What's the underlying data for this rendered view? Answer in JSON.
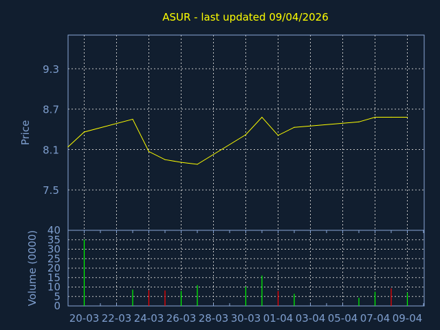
{
  "chart_data": [
    {
      "type": "line",
      "title": "ASUR - last updated 09/04/2026",
      "ylabel": "Price",
      "xlabel": "",
      "ylim": [
        6.9,
        9.8
      ],
      "yticks": [
        "9.3",
        "8.7",
        "8.1",
        "7.5"
      ],
      "ytick_values": [
        9.3,
        8.7,
        8.1,
        7.5
      ],
      "grid": true,
      "line_color": "#ffff00",
      "x": [
        "19-03",
        "20-03",
        "23-03",
        "24-03",
        "25-03",
        "26-03",
        "27-03",
        "30-03",
        "31-03",
        "01-04",
        "02-04",
        "06-04",
        "07-04",
        "08-04",
        "09-04"
      ],
      "values": [
        8.14,
        8.36,
        8.55,
        8.07,
        7.95,
        7.91,
        7.88,
        8.32,
        8.58,
        8.31,
        8.43,
        8.51,
        8.58,
        8.58,
        8.58
      ]
    },
    {
      "type": "bar",
      "ylabel": "Volume (0000)",
      "ylim": [
        0,
        40
      ],
      "yticks": [
        "40",
        "35",
        "30",
        "25",
        "20",
        "15",
        "10",
        "5",
        "0"
      ],
      "ytick_values": [
        40,
        35,
        30,
        25,
        20,
        15,
        10,
        5,
        0
      ],
      "grid": true,
      "xticks": [
        "20-03",
        "22-03",
        "24-03",
        "26-03",
        "28-03",
        "30-03",
        "01-04",
        "03-04",
        "05-04",
        "07-04",
        "09-04"
      ],
      "x": [
        "20-03",
        "23-03",
        "24-03",
        "25-03",
        "26-03",
        "27-03",
        "30-03",
        "31-03",
        "01-04",
        "02-04",
        "06-04",
        "07-04",
        "08-04",
        "09-04"
      ],
      "values": [
        35.1,
        8.6,
        8.3,
        8.2,
        7.9,
        11.0,
        10.2,
        16.1,
        7.9,
        6.4,
        4.3,
        7.5,
        9.3,
        7.0
      ],
      "direction": [
        "up",
        "up",
        "down",
        "down",
        "up",
        "up",
        "up",
        "up",
        "down",
        "up",
        "up",
        "up",
        "down",
        "up"
      ],
      "colors": {
        "up": "#00ff00",
        "down": "#ff0000"
      }
    }
  ],
  "colors": {
    "background": "#111e2f",
    "axis": "#8aa8d8",
    "label": "#7f9fcf",
    "title": "#ffff00",
    "grid": "#c8c8c8"
  }
}
